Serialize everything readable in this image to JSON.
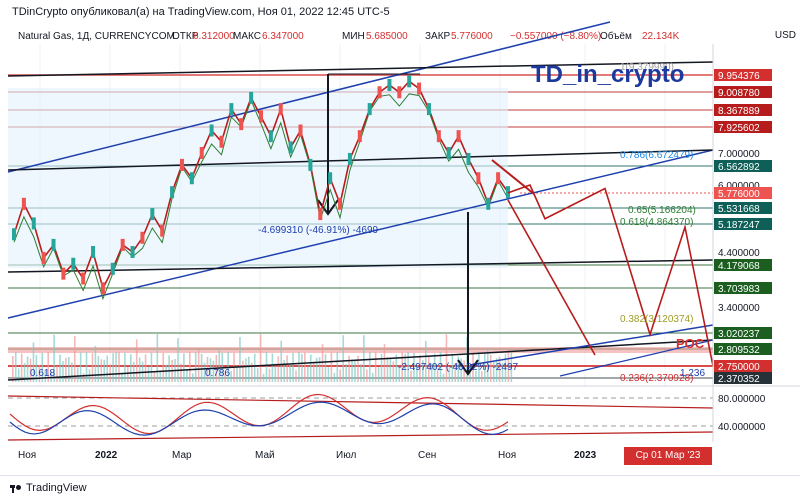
{
  "header": {
    "publisher": "TDinCrypto опубликовал(а) на TradingView.com, Ноя 01, 2022 12:45 UTC-5"
  },
  "legend": {
    "symbol": "Natural Gas, 1Д, CURRENCYCOM",
    "open_label": "ОТКР",
    "open_value": "6.312000",
    "high_label": "МАКС",
    "high_value": "6.347000",
    "low_label": "МИН",
    "low_value": "5.685000",
    "close_label": "ЗАКР",
    "close_value": "5.776000",
    "change": "−0.557000 (−8.80%)",
    "volume_label": "Объём",
    "volume_value": "22.134K"
  },
  "currency": "USD",
  "watermark": "TD_in_crypto",
  "poc_label": "POC",
  "annotations": {
    "drop1": "-4.699310 (-46.91%) -4699",
    "drop2": "-2.497402 (-46.92%) -2497",
    "fib1": "1(9.379990)",
    "fib_0786": "0.786(6.672479)",
    "fib_065": "0.65(5.166204)",
    "fib_0618": "0.618(4.864370)",
    "fib_0382": "0.382(3.120374)",
    "fib_0236": "0.236(2.370928)",
    "lv_0618": "0.618",
    "lv_0786": "0.786",
    "lv_1": "1.236",
    "osc_80": "80.000000",
    "osc_40": "40.000000"
  },
  "price_labels": [
    {
      "value": "9.954376",
      "bg": "#d32f2f",
      "fg": "#ffffff",
      "y": 9.954376
    },
    {
      "value": "9.008780",
      "bg": "#b71c1c",
      "fg": "#ffffff",
      "y": 9.00878
    },
    {
      "value": "8.367889",
      "bg": "#b71c1c",
      "fg": "#ffffff",
      "y": 8.367889
    },
    {
      "value": "7.925602",
      "bg": "#b71c1c",
      "fg": "#ffffff",
      "y": 7.925602
    },
    {
      "value": "7.000000",
      "bg": "none",
      "fg": "#131722",
      "y": 7.0
    },
    {
      "value": "6.562892",
      "bg": "#0d5f57",
      "fg": "#ffffff",
      "y": 6.562892
    },
    {
      "value": "6.000000",
      "bg": "none",
      "fg": "#131722",
      "y": 6.0
    },
    {
      "value": "5.776000",
      "bg": "#ef5350",
      "fg": "#ffffff",
      "y": 5.776
    },
    {
      "value": "5.531668",
      "bg": "#0d5f57",
      "fg": "#ffffff",
      "y": 5.531668
    },
    {
      "value": "5.187247",
      "bg": "#0d5f57",
      "fg": "#ffffff",
      "y": 5.187247
    },
    {
      "value": "4.400000",
      "bg": "none",
      "fg": "#131722",
      "y": 4.4
    },
    {
      "value": "4.179068",
      "bg": "#1b5e20",
      "fg": "#ffffff",
      "y": 4.179068
    },
    {
      "value": "3.703983",
      "bg": "#1b5e20",
      "fg": "#ffffff",
      "y": 3.703983
    },
    {
      "value": "3.400000",
      "bg": "none",
      "fg": "#131722",
      "y": 3.4
    },
    {
      "value": "3.020237",
      "bg": "#1b5e20",
      "fg": "#ffffff",
      "y": 3.020237
    },
    {
      "value": "2.809532",
      "bg": "#1b5e20",
      "fg": "#ffffff",
      "y": 2.809532
    },
    {
      "value": "2.750000",
      "bg": "#d32f2f",
      "fg": "#ffffff",
      "y": 2.75
    },
    {
      "value": "2.370352",
      "bg": "#263238",
      "fg": "#ffffff",
      "y": 2.370352
    }
  ],
  "time_axis": [
    {
      "label": "Ноя",
      "bold": false
    },
    {
      "label": "2022",
      "bold": true
    },
    {
      "label": "Мар",
      "bold": false
    },
    {
      "label": "Май",
      "bold": false
    },
    {
      "label": "Июл",
      "bold": false
    },
    {
      "label": "Сен",
      "bold": false
    },
    {
      "label": "Ноя",
      "bold": false
    },
    {
      "label": "2023",
      "bold": true
    }
  ],
  "cursor_date": "Ср 01 Мар '23",
  "footer_brand": "TradingView",
  "chart_data": {
    "type": "line",
    "symbol": "Natural Gas, 1Д",
    "y_axis": "USD",
    "close_series": [
      4.9,
      5.6,
      5.2,
      4.3,
      4.6,
      4.0,
      4.2,
      3.9,
      4.4,
      3.7,
      4.1,
      4.6,
      4.4,
      4.8,
      5.4,
      5.0,
      5.8,
      6.6,
      6.2,
      7.0,
      7.8,
      7.4,
      8.4,
      8.0,
      8.8,
      8.2,
      7.6,
      8.4,
      7.2,
      7.8,
      6.6,
      5.4,
      6.2,
      5.6,
      6.8,
      7.6,
      8.4,
      9.0,
      9.4,
      9.0,
      9.6,
      9.2,
      8.4,
      7.6,
      7.0,
      7.6,
      6.8,
      6.2,
      5.6,
      6.2,
      5.8
    ],
    "projection": [
      5.78,
      6.0,
      5.3,
      5.9,
      3.0,
      5.1,
      2.75
    ],
    "fibonacci": [
      {
        "level": "1",
        "price": 9.37999
      },
      {
        "level": "0.786",
        "price": 6.672479
      },
      {
        "level": "0.65",
        "price": 5.166204
      },
      {
        "level": "0.618",
        "price": 4.86437
      },
      {
        "level": "0.382",
        "price": 3.120374
      },
      {
        "level": "0.236",
        "price": 2.370928
      }
    ],
    "oscillator": {
      "levels": [
        80,
        40
      ]
    }
  }
}
